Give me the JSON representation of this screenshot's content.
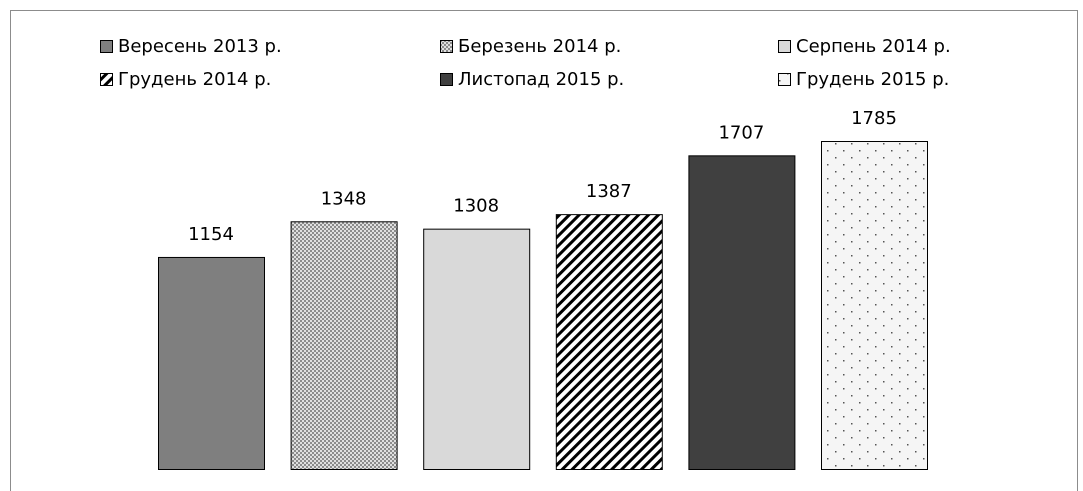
{
  "chart_data": {
    "type": "bar",
    "series": [
      {
        "name": "Вересень 2013 р.",
        "color": "#7f7f7f",
        "pattern": "solid",
        "values": [
          1154
        ]
      },
      {
        "name": "Березень 2014 р.",
        "color": "#bfbfbf",
        "pattern": "checker",
        "values": [
          1348
        ]
      },
      {
        "name": "Серпень 2014 р.",
        "color": "#d9d9d9",
        "pattern": "solid",
        "values": [
          1308
        ]
      },
      {
        "name": "Грудень 2014 р.",
        "color": "#ffffff",
        "pattern": "diagonal",
        "values": [
          1387
        ]
      },
      {
        "name": "Листопад 2015 р.",
        "color": "#404040",
        "pattern": "solid",
        "values": [
          1707
        ]
      },
      {
        "name": "Грудень 2015 р.",
        "color": "#f2f2f2",
        "pattern": "dots",
        "values": [
          1785
        ]
      }
    ],
    "legend": "top"
  }
}
